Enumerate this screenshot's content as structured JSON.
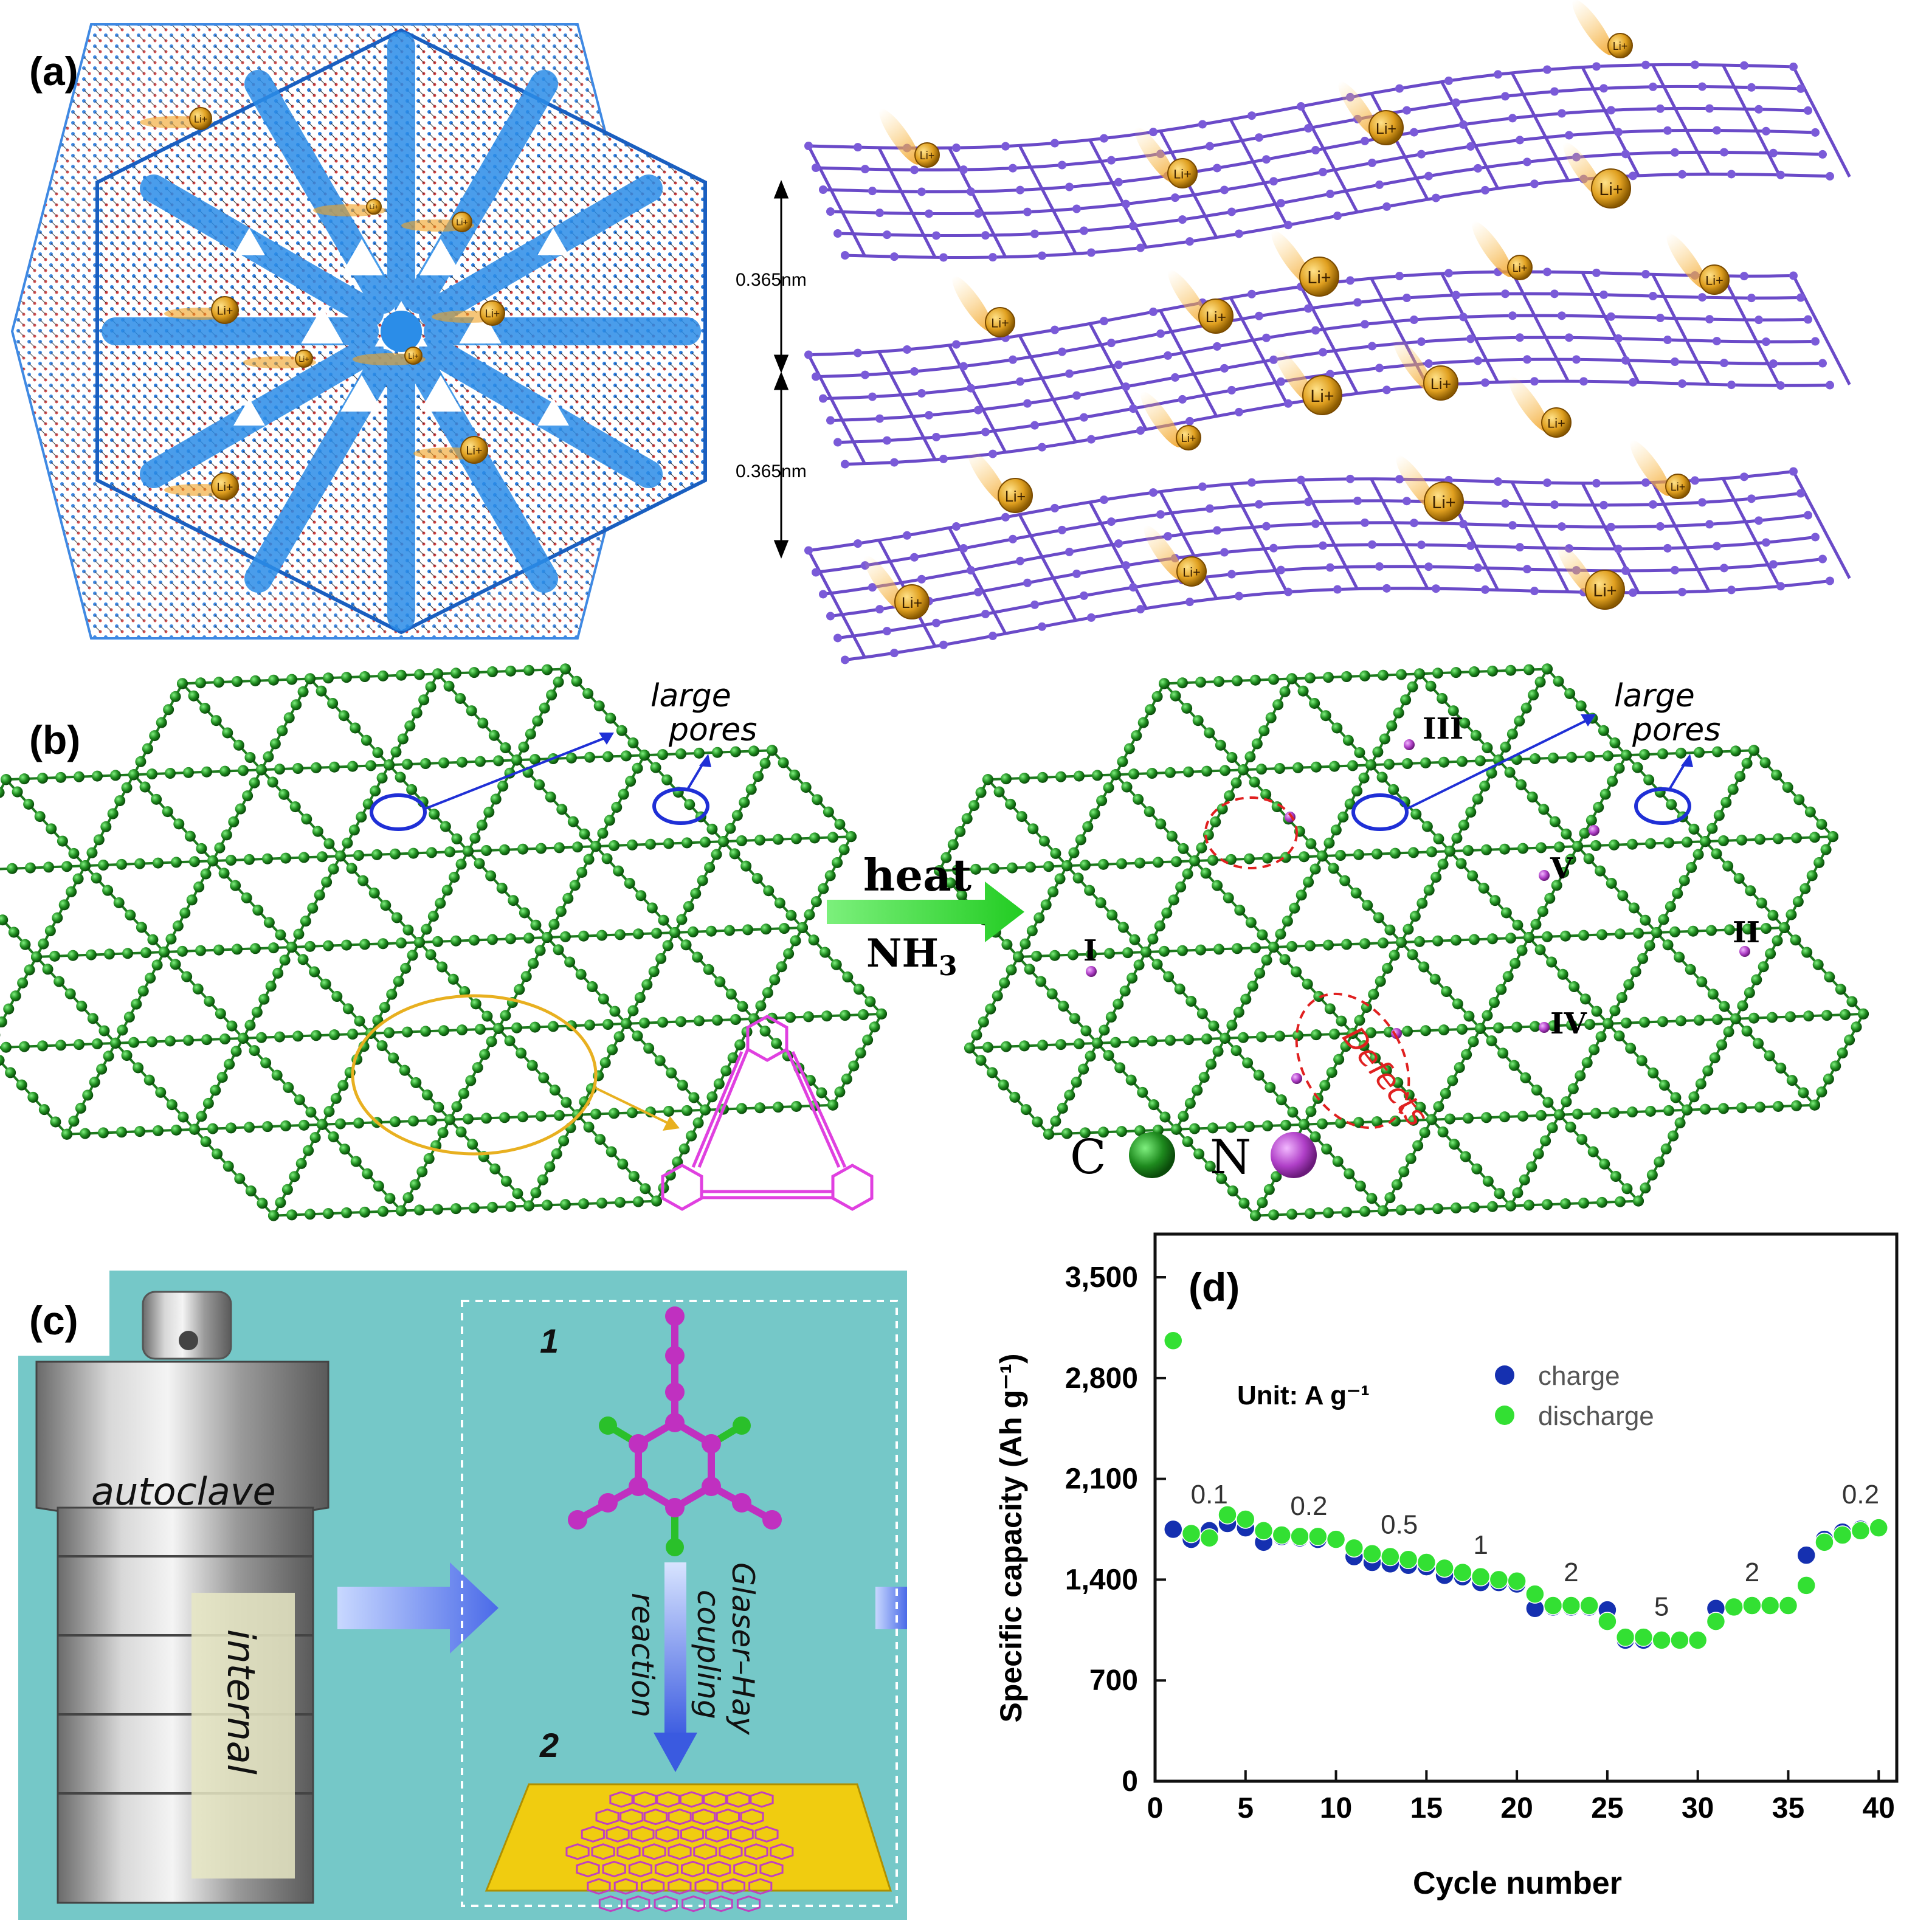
{
  "panel_a": {
    "label": "(a)",
    "spacing_top": "0.365nm",
    "spacing_bottom": "0.365nm",
    "ion_label": "Li+"
  },
  "panel_b": {
    "label": "(b)",
    "left_pores_label": [
      "large",
      "pores"
    ],
    "right_pores_label": [
      "large",
      "pores"
    ],
    "arrow_top": "heat",
    "arrow_bottom": "NH3",
    "defects_label": "Defects",
    "site_labels": [
      "I",
      "II",
      "III",
      "IV",
      "V"
    ],
    "legend_c": "C",
    "legend_n": "N",
    "colors": {
      "carbon": "#1e8a1e",
      "nitrogen": "#c050d0",
      "pores": "#1f2fd6",
      "defects": "#e02020",
      "monomer": "#e040e0"
    }
  },
  "panel_c": {
    "label": "(c)",
    "autoclave_label": "autoclave",
    "internal_label": "internal",
    "step1": "1",
    "step2": "2",
    "reaction_lines": [
      "Glaser–Hay",
      "coupling",
      "reaction"
    ],
    "colors": {
      "background": "#75c8c8"
    }
  },
  "panel_d": {
    "label": "(d)",
    "unit_note": "Unit: A g⁻¹",
    "rate_labels": [
      "0.1",
      "0.2",
      "0.5",
      "1",
      "2",
      "5",
      "2",
      "0.2"
    ]
  },
  "chart_data": {
    "type": "scatter",
    "xlabel": "Cycle number",
    "ylabel": "Specific capacity (Ah g⁻¹)",
    "xlim": [
      0,
      41
    ],
    "ylim": [
      0,
      3800
    ],
    "xticks": [
      0,
      5,
      10,
      15,
      20,
      25,
      30,
      35,
      40
    ],
    "yticks": [
      0,
      700,
      1400,
      2100,
      2800,
      3500
    ],
    "ytick_labels": [
      "0",
      "700",
      "1,400",
      "2,100",
      "2,800",
      "3,500"
    ],
    "legend_position": "top-right",
    "series": [
      {
        "name": "charge",
        "color": "#1530b0",
        "x": [
          1,
          2,
          3,
          4,
          5,
          6,
          7,
          8,
          9,
          10,
          11,
          12,
          13,
          14,
          15,
          16,
          17,
          18,
          19,
          20,
          21,
          22,
          23,
          24,
          25,
          26,
          27,
          28,
          29,
          30,
          31,
          32,
          33,
          34,
          35,
          36,
          37,
          38,
          39,
          40
        ],
        "y": [
          1750,
          1680,
          1740,
          1790,
          1760,
          1660,
          1700,
          1690,
          1680,
          1680,
          1560,
          1520,
          1510,
          1500,
          1490,
          1430,
          1420,
          1380,
          1380,
          1370,
          1200,
          1210,
          1210,
          1210,
          1190,
          980,
          980,
          980,
          980,
          980,
          1200,
          1210,
          1220,
          1220,
          1220,
          1570,
          1680,
          1730,
          1750,
          1760
        ]
      },
      {
        "name": "discharge",
        "color": "#33e033",
        "x": [
          1,
          2,
          3,
          4,
          5,
          6,
          7,
          8,
          9,
          10,
          11,
          12,
          13,
          14,
          15,
          16,
          17,
          18,
          19,
          20,
          21,
          22,
          23,
          24,
          25,
          26,
          27,
          28,
          29,
          30,
          31,
          32,
          33,
          34,
          35,
          36,
          37,
          38,
          39,
          40
        ],
        "y": [
          3060,
          1720,
          1690,
          1850,
          1820,
          1740,
          1710,
          1700,
          1700,
          1680,
          1620,
          1580,
          1560,
          1540,
          1520,
          1480,
          1450,
          1420,
          1400,
          1390,
          1300,
          1220,
          1220,
          1220,
          1110,
          1000,
          1000,
          980,
          980,
          980,
          1110,
          1210,
          1220,
          1220,
          1220,
          1360,
          1660,
          1710,
          1740,
          1760
        ]
      }
    ]
  }
}
